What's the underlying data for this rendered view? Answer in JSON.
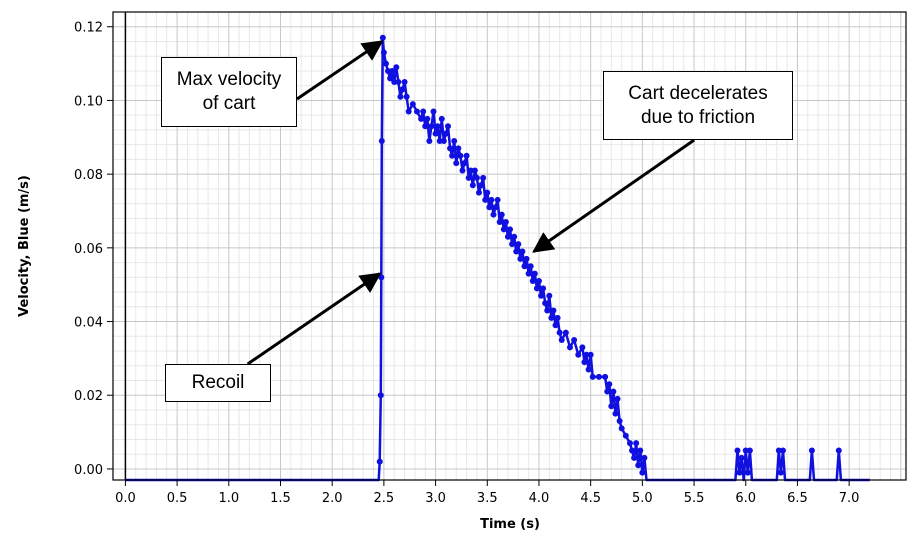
{
  "chart_data": {
    "type": "line",
    "xlabel": "Time (s)",
    "ylabel": "Velocity, Blue (m/s)",
    "xlim": [
      -0.12,
      7.55
    ],
    "ylim": [
      -0.003,
      0.124
    ],
    "x_ticks": [
      "0.0",
      "0.5",
      "1.0",
      "1.5",
      "2.0",
      "2.5",
      "3.0",
      "3.5",
      "4.0",
      "4.5",
      "5.0",
      "5.5",
      "6.0",
      "6.5",
      "7.0"
    ],
    "y_ticks": [
      "0.00",
      "0.02",
      "0.04",
      "0.06",
      "0.08",
      "0.10",
      "0.12"
    ],
    "grid": true,
    "series_color": "#1010e0",
    "series": [
      {
        "points": [
          [
            0.0,
            -0.003
          ],
          [
            2.45,
            -0.003
          ],
          [
            2.46,
            0.002
          ],
          [
            2.47,
            0.02
          ],
          [
            2.475,
            0.052
          ],
          [
            2.48,
            0.089
          ],
          [
            2.49,
            0.117
          ],
          [
            2.5,
            0.113
          ],
          [
            2.52,
            0.11
          ],
          [
            2.54,
            0.108
          ],
          [
            2.56,
            0.106
          ],
          [
            2.58,
            0.108
          ],
          [
            2.6,
            0.105
          ],
          [
            2.62,
            0.109
          ],
          [
            2.64,
            0.105
          ],
          [
            2.66,
            0.101
          ],
          [
            2.68,
            0.103
          ],
          [
            2.7,
            0.105
          ],
          [
            2.72,
            0.101
          ],
          [
            2.74,
            0.097
          ],
          [
            2.78,
            0.099
          ],
          [
            2.82,
            0.097
          ],
          [
            2.86,
            0.095
          ],
          [
            2.88,
            0.097
          ],
          [
            2.9,
            0.093
          ],
          [
            2.92,
            0.095
          ],
          [
            2.94,
            0.089
          ],
          [
            2.96,
            0.093
          ],
          [
            2.98,
            0.097
          ],
          [
            3.0,
            0.091
          ],
          [
            3.02,
            0.093
          ],
          [
            3.04,
            0.089
          ],
          [
            3.06,
            0.095
          ],
          [
            3.08,
            0.089
          ],
          [
            3.1,
            0.091
          ],
          [
            3.12,
            0.093
          ],
          [
            3.14,
            0.087
          ],
          [
            3.16,
            0.085
          ],
          [
            3.18,
            0.089
          ],
          [
            3.2,
            0.083
          ],
          [
            3.22,
            0.087
          ],
          [
            3.24,
            0.085
          ],
          [
            3.26,
            0.081
          ],
          [
            3.28,
            0.083
          ],
          [
            3.3,
            0.085
          ],
          [
            3.32,
            0.079
          ],
          [
            3.34,
            0.081
          ],
          [
            3.36,
            0.077
          ],
          [
            3.38,
            0.081
          ],
          [
            3.4,
            0.079
          ],
          [
            3.42,
            0.075
          ],
          [
            3.44,
            0.077
          ],
          [
            3.46,
            0.079
          ],
          [
            3.48,
            0.073
          ],
          [
            3.5,
            0.075
          ],
          [
            3.52,
            0.071
          ],
          [
            3.54,
            0.073
          ],
          [
            3.56,
            0.069
          ],
          [
            3.58,
            0.071
          ],
          [
            3.6,
            0.073
          ],
          [
            3.62,
            0.067
          ],
          [
            3.64,
            0.069
          ],
          [
            3.66,
            0.065
          ],
          [
            3.68,
            0.067
          ],
          [
            3.7,
            0.063
          ],
          [
            3.72,
            0.065
          ],
          [
            3.74,
            0.061
          ],
          [
            3.76,
            0.063
          ],
          [
            3.78,
            0.059
          ],
          [
            3.8,
            0.061
          ],
          [
            3.82,
            0.057
          ],
          [
            3.84,
            0.059
          ],
          [
            3.86,
            0.055
          ],
          [
            3.88,
            0.057
          ],
          [
            3.9,
            0.053
          ],
          [
            3.92,
            0.055
          ],
          [
            3.94,
            0.051
          ],
          [
            3.96,
            0.053
          ],
          [
            3.98,
            0.049
          ],
          [
            4.0,
            0.051
          ],
          [
            4.02,
            0.047
          ],
          [
            4.04,
            0.049
          ],
          [
            4.06,
            0.045
          ],
          [
            4.08,
            0.043
          ],
          [
            4.1,
            0.047
          ],
          [
            4.12,
            0.041
          ],
          [
            4.14,
            0.043
          ],
          [
            4.16,
            0.039
          ],
          [
            4.18,
            0.041
          ],
          [
            4.2,
            0.037
          ],
          [
            4.22,
            0.035
          ],
          [
            4.26,
            0.037
          ],
          [
            4.3,
            0.033
          ],
          [
            4.34,
            0.035
          ],
          [
            4.38,
            0.031
          ],
          [
            4.42,
            0.033
          ],
          [
            4.44,
            0.029
          ],
          [
            4.46,
            0.031
          ],
          [
            4.48,
            0.027
          ],
          [
            4.5,
            0.031
          ],
          [
            4.52,
            0.025
          ],
          [
            4.58,
            0.025
          ],
          [
            4.64,
            0.025
          ],
          [
            4.66,
            0.021
          ],
          [
            4.68,
            0.023
          ],
          [
            4.7,
            0.017
          ],
          [
            4.72,
            0.021
          ],
          [
            4.74,
            0.015
          ],
          [
            4.76,
            0.019
          ],
          [
            4.78,
            0.013
          ],
          [
            4.8,
            0.011
          ],
          [
            4.84,
            0.009
          ],
          [
            4.88,
            0.007
          ],
          [
            4.9,
            0.005
          ],
          [
            4.92,
            0.003
          ],
          [
            4.94,
            0.007
          ],
          [
            4.96,
            0.001
          ],
          [
            4.98,
            0.005
          ],
          [
            5.0,
            -0.001
          ],
          [
            5.02,
            0.003
          ],
          [
            5.04,
            -0.003
          ],
          [
            5.6,
            -0.003
          ],
          [
            5.9,
            -0.003
          ],
          [
            5.92,
            0.005
          ],
          [
            5.94,
            -0.001
          ],
          [
            5.96,
            0.003
          ],
          [
            5.98,
            -0.003
          ],
          [
            6.0,
            0.005
          ],
          [
            6.02,
            -0.001
          ],
          [
            6.04,
            0.005
          ],
          [
            6.06,
            -0.003
          ],
          [
            6.3,
            -0.003
          ],
          [
            6.32,
            0.005
          ],
          [
            6.34,
            -0.001
          ],
          [
            6.36,
            0.005
          ],
          [
            6.38,
            -0.003
          ],
          [
            6.62,
            -0.003
          ],
          [
            6.64,
            0.005
          ],
          [
            6.66,
            -0.003
          ],
          [
            6.88,
            -0.003
          ],
          [
            6.9,
            0.005
          ],
          [
            6.92,
            -0.003
          ],
          [
            7.2,
            -0.003
          ]
        ]
      }
    ],
    "annotations": [
      {
        "lines": [
          "Max velocity",
          "of cart"
        ],
        "arrow_to": [
          2.48,
          0.116
        ]
      },
      {
        "lines": [
          "Cart decelerates",
          "due to friction"
        ],
        "arrow_to": [
          3.95,
          0.059
        ]
      },
      {
        "lines": [
          "Recoil"
        ],
        "arrow_to": [
          2.46,
          0.053
        ]
      }
    ]
  }
}
